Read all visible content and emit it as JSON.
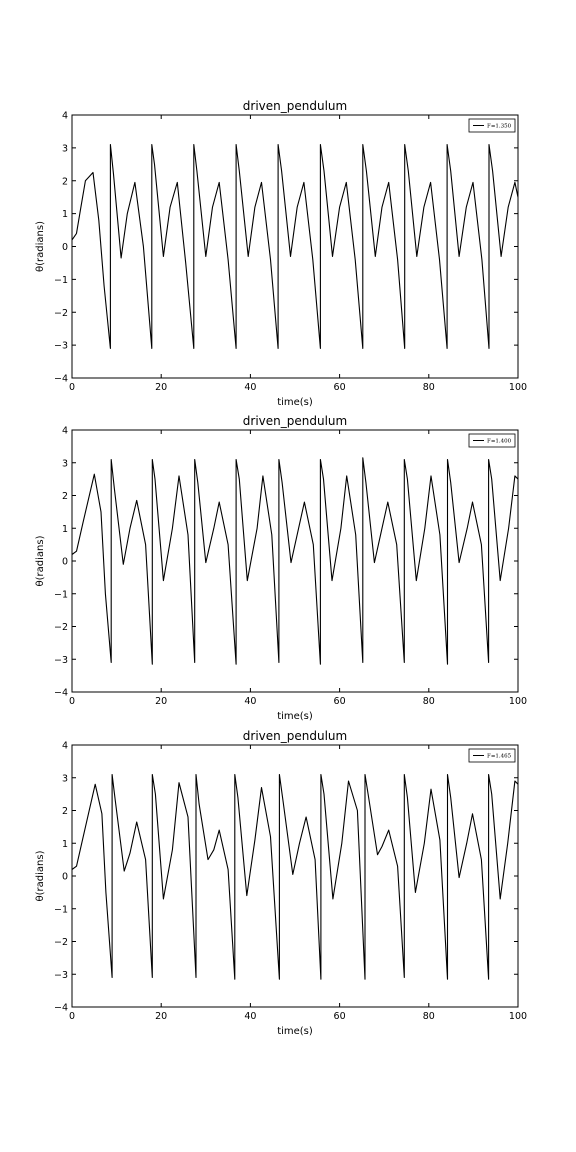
{
  "colors": {
    "background": "#ffffff",
    "axes": "#000000",
    "line": "#000000"
  },
  "chart_data": [
    {
      "type": "line",
      "title": "driven_pendulum",
      "xlabel": "time(s)",
      "ylabel": "θ(radians)",
      "xlim": [
        0,
        100
      ],
      "ylim": [
        -4,
        4
      ],
      "xticks": [
        "0",
        "20",
        "40",
        "60",
        "80",
        "100"
      ],
      "yticks": [
        "−4",
        "−3",
        "−2",
        "−1",
        "0",
        "1",
        "2",
        "3",
        "4"
      ],
      "grid": false,
      "legend_position": "top-right",
      "series": [
        {
          "name": "F=1.350",
          "x": [
            0,
            1,
            2,
            3,
            4.7,
            6,
            7.2,
            8.6,
            8.6,
            9.3,
            11,
            12.4,
            14.1,
            16,
            17.9,
            17.9,
            18.5,
            20.5,
            22,
            23.6,
            25.5,
            27.3,
            27.3,
            28,
            30,
            31.5,
            33,
            35,
            36.8,
            36.8,
            37.5,
            39.5,
            41,
            42.5,
            44.5,
            46.2,
            46.2,
            47,
            49,
            50.5,
            52,
            54,
            55.7,
            55.7,
            56.5,
            58.4,
            60,
            61.5,
            63.5,
            65.2,
            65.2,
            66,
            68,
            69.5,
            71,
            73,
            74.6,
            74.6,
            75.4,
            77.3,
            78.9,
            80.4,
            82.4,
            84.1,
            84.1,
            84.9,
            86.8,
            88.4,
            89.9,
            91.9,
            93.5,
            93.5,
            94.3,
            96.2,
            97.8,
            99.3,
            100
          ],
          "y": [
            0.2,
            0.4,
            1.2,
            2.0,
            2.25,
            0.8,
            -1.2,
            -3.1,
            3.1,
            2.2,
            -0.35,
            1.0,
            1.95,
            0.0,
            -3.1,
            3.1,
            2.5,
            -0.3,
            1.2,
            1.95,
            -0.5,
            -3.1,
            3.1,
            2.3,
            -0.3,
            1.2,
            1.95,
            -0.4,
            -3.1,
            3.1,
            2.3,
            -0.3,
            1.2,
            1.95,
            -0.4,
            -3.1,
            3.1,
            2.3,
            -0.3,
            1.2,
            1.95,
            -0.4,
            -3.1,
            3.1,
            2.3,
            -0.3,
            1.2,
            1.95,
            -0.4,
            -3.1,
            3.1,
            2.3,
            -0.3,
            1.2,
            1.95,
            -0.4,
            -3.1,
            3.1,
            2.3,
            -0.3,
            1.2,
            1.95,
            -0.4,
            -3.1,
            3.1,
            2.3,
            -0.3,
            1.2,
            1.95,
            -0.4,
            -3.1,
            3.1,
            2.3,
            -0.3,
            1.2,
            1.95,
            1.5
          ]
        }
      ]
    },
    {
      "type": "line",
      "title": "driven_pendulum",
      "xlabel": "time(s)",
      "ylabel": "θ(radians)",
      "xlim": [
        0,
        100
      ],
      "ylim": [
        -4,
        4
      ],
      "xticks": [
        "0",
        "20",
        "40",
        "60",
        "80",
        "100"
      ],
      "yticks": [
        "−4",
        "−3",
        "−2",
        "−1",
        "0",
        "1",
        "2",
        "3",
        "4"
      ],
      "grid": false,
      "legend_position": "top-right",
      "series": [
        {
          "name": "F=1.400",
          "x": [
            0,
            1,
            2.5,
            5,
            6.5,
            7.5,
            8.8,
            8.8,
            9.5,
            11.5,
            13,
            14.5,
            16.5,
            18,
            18,
            18.6,
            20.5,
            22.5,
            24,
            26,
            27.5,
            27.5,
            28.2,
            30,
            31.8,
            33,
            35,
            36.8,
            36.8,
            37.5,
            39.3,
            41.5,
            42.8,
            44.8,
            46.4,
            46.4,
            47.1,
            49.1,
            50.8,
            52.1,
            54.1,
            55.7,
            55.7,
            56.4,
            58.3,
            60.3,
            61.6,
            63.6,
            65.2,
            65.2,
            65.9,
            67.8,
            69.5,
            70.8,
            72.8,
            74.5,
            74.5,
            75.2,
            77.2,
            79.1,
            80.5,
            82.5,
            84.2,
            84.2,
            84.9,
            86.8,
            88.6,
            89.8,
            91.8,
            93.4,
            93.4,
            94.1,
            96,
            97.9,
            99.3,
            100
          ],
          "y": [
            0.2,
            0.3,
            1.2,
            2.65,
            1.5,
            -1.0,
            -3.1,
            3.1,
            2.2,
            -0.1,
            1.0,
            1.85,
            0.5,
            -3.15,
            3.1,
            2.5,
            -0.6,
            1.0,
            2.6,
            0.8,
            -3.1,
            3.1,
            2.4,
            -0.05,
            1.0,
            1.8,
            0.5,
            -3.15,
            3.1,
            2.5,
            -0.6,
            1.0,
            2.6,
            0.8,
            -3.1,
            3.1,
            2.4,
            -0.05,
            1.0,
            1.8,
            0.5,
            -3.15,
            3.1,
            2.5,
            -0.6,
            1.0,
            2.6,
            0.8,
            -3.1,
            3.15,
            2.4,
            -0.05,
            1.0,
            1.8,
            0.5,
            -3.1,
            3.1,
            2.5,
            -0.6,
            1.0,
            2.6,
            0.8,
            -3.15,
            3.1,
            2.4,
            -0.05,
            1.0,
            1.8,
            0.5,
            -3.1,
            3.1,
            2.5,
            -0.6,
            1.0,
            2.6,
            2.5
          ]
        }
      ]
    },
    {
      "type": "line",
      "title": "driven_pendulum",
      "xlabel": "time(s)",
      "ylabel": "θ(radians)",
      "xlim": [
        0,
        100
      ],
      "ylim": [
        -4,
        4
      ],
      "xticks": [
        "0",
        "20",
        "40",
        "60",
        "80",
        "100"
      ],
      "yticks": [
        "−4",
        "−3",
        "−2",
        "−1",
        "0",
        "1",
        "2",
        "3",
        "4"
      ],
      "grid": false,
      "legend_position": "top-right",
      "series": [
        {
          "name": "F=1.465",
          "x": [
            0,
            1,
            2.5,
            5.2,
            6.7,
            7.6,
            9,
            9,
            9.7,
            11.7,
            13,
            14.5,
            16.5,
            18,
            18,
            18.7,
            20.5,
            22.5,
            24,
            26,
            27.8,
            27.8,
            28.5,
            30.5,
            31.8,
            33,
            35,
            36.5,
            36.5,
            37.2,
            39.2,
            41,
            42.5,
            44.5,
            46.5,
            46.5,
            47.3,
            49.5,
            51,
            52.5,
            54.5,
            55.8,
            55.8,
            56.5,
            58.5,
            60.5,
            62,
            64,
            65.7,
            65.7,
            66.4,
            68.5,
            69.5,
            71,
            73,
            74.5,
            74.5,
            75.2,
            77,
            79,
            80.5,
            82.5,
            84.2,
            84.2,
            84.9,
            86.8,
            88.5,
            89.8,
            91.8,
            93.4,
            93.4,
            94.1,
            96,
            97.7,
            99.3,
            100
          ],
          "y": [
            0.2,
            0.3,
            1.2,
            2.8,
            1.9,
            -0.5,
            -3.1,
            3.1,
            2.3,
            0.15,
            0.7,
            1.65,
            0.5,
            -3.1,
            3.1,
            2.5,
            -0.7,
            0.8,
            2.85,
            1.8,
            -3.1,
            3.1,
            2.2,
            0.5,
            0.8,
            1.4,
            0.2,
            -3.15,
            3.1,
            2.4,
            -0.6,
            1.1,
            2.7,
            1.2,
            -3.15,
            3.1,
            2.3,
            0.05,
            1.0,
            1.8,
            0.5,
            -3.15,
            3.1,
            2.5,
            -0.7,
            1.0,
            2.9,
            2.0,
            -3.15,
            3.1,
            2.5,
            0.65,
            0.9,
            1.4,
            0.3,
            -3.1,
            3.1,
            2.4,
            -0.5,
            1.0,
            2.65,
            1.1,
            -3.15,
            3.1,
            2.4,
            -0.05,
            1.0,
            1.9,
            0.5,
            -3.15,
            3.1,
            2.5,
            -0.7,
            1.0,
            2.9,
            2.8
          ]
        }
      ]
    }
  ]
}
